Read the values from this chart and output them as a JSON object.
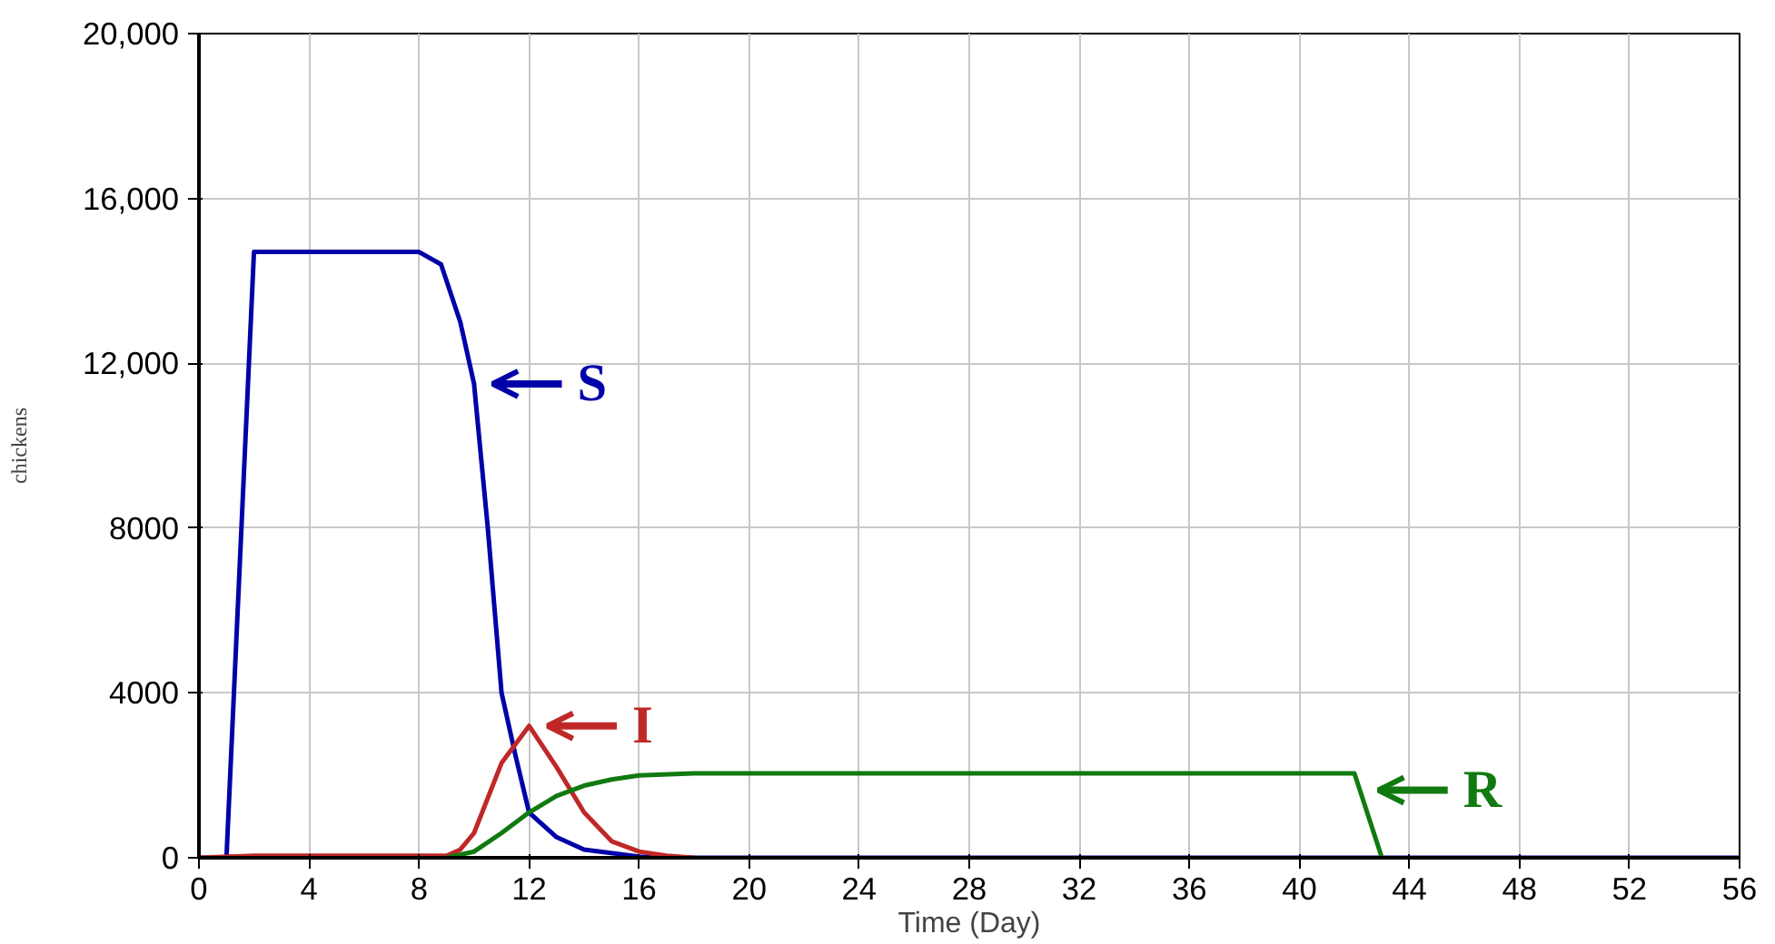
{
  "chart_data": {
    "type": "line",
    "xlabel": "Time (Day)",
    "ylabel": "chickens",
    "xlim": [
      0,
      56
    ],
    "ylim": [
      0,
      20000
    ],
    "xticks": [
      0,
      4,
      8,
      12,
      16,
      20,
      24,
      28,
      32,
      36,
      40,
      44,
      48,
      52,
      56
    ],
    "yticks": [
      0,
      4000,
      8000,
      {
        "value": 12000,
        "label": "12,000"
      },
      {
        "value": 16000,
        "label": "16,000"
      },
      {
        "value": 20000,
        "label": "20,000"
      }
    ],
    "grid": true,
    "marker": "none",
    "line_style": "solid",
    "series": [
      {
        "color": "#0000a8",
        "x": [
          0,
          1,
          2,
          8,
          8.8,
          9.5,
          10,
          10.5,
          11,
          11.5,
          12,
          13,
          14,
          16,
          18,
          56
        ],
        "values": [
          0,
          0,
          14700,
          14700,
          14400,
          13000,
          11500,
          8000,
          4000,
          2500,
          1100,
          500,
          200,
          30,
          0,
          0
        ]
      },
      {
        "color": "#c02828",
        "x": [
          0,
          2,
          9,
          9.5,
          10,
          11,
          12,
          13,
          14,
          15,
          16,
          17,
          18
        ],
        "values": [
          0,
          50,
          50,
          200,
          600,
          2300,
          3200,
          2200,
          1100,
          400,
          150,
          50,
          0
        ]
      },
      {
        "color": "#107a10",
        "x": [
          9,
          10,
          11,
          12,
          13,
          14,
          15,
          16,
          18,
          42,
          43
        ],
        "values": [
          0,
          150,
          600,
          1100,
          1500,
          1750,
          1900,
          2000,
          2050,
          2050,
          0
        ]
      }
    ],
    "annotations": [
      {
        "text": "S",
        "x": 10,
        "y": 11500
      },
      {
        "text": "I",
        "x": 12,
        "y": 3200
      },
      {
        "text": "R",
        "x": 42.2,
        "y": 1640
      }
    ]
  }
}
